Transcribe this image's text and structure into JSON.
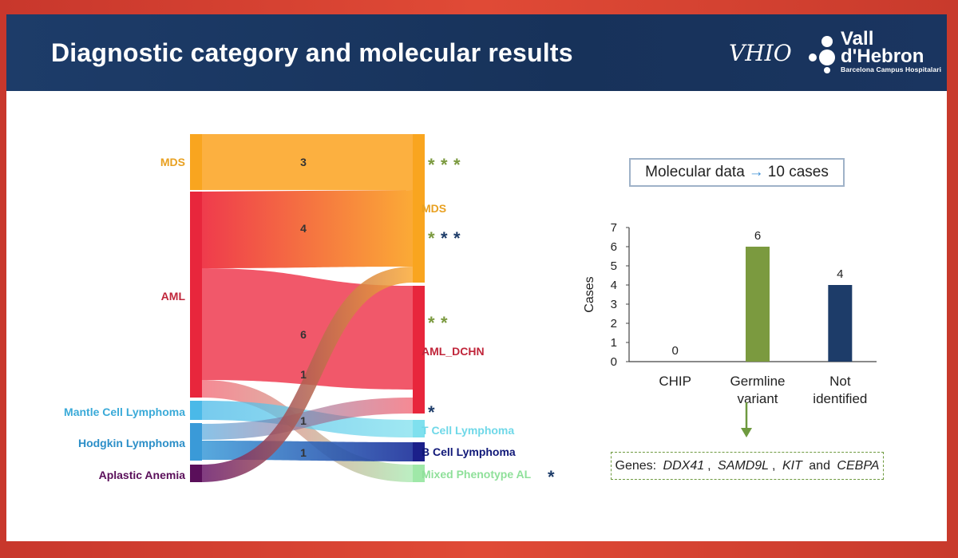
{
  "header": {
    "title": "Diagnostic category and molecular results",
    "logo_vhio": "VHIO",
    "logo_vh_line1": "Vall",
    "logo_vh_line2": "d'Hebron",
    "logo_vh_sub": "Barcelona Campus Hospitalari"
  },
  "sankey": {
    "left_nodes": [
      "MDS",
      "AML",
      "Mantle Cell Lymphoma",
      "Hodgkin Lymphoma",
      "Aplastic Anemia"
    ],
    "right_nodes": [
      "MDS",
      "AML_DCHN",
      "T Cell Lymphoma",
      "B Cell Lymphoma",
      "Mixed Phenotype AL"
    ],
    "flows": [
      {
        "from": "MDS",
        "to": "MDS",
        "value": 3
      },
      {
        "from": "AML",
        "to": "MDS",
        "value": 4
      },
      {
        "from": "AML",
        "to": "AML_DCHN",
        "value": 6
      },
      {
        "from": "AML",
        "to": "Mixed Phenotype AL",
        "value": 1
      },
      {
        "from": "Mantle Cell Lymphoma",
        "to": "T Cell Lymphoma",
        "value": 1
      },
      {
        "from": "Hodgkin Lymphoma",
        "to": "B Cell Lymphoma",
        "value": 1
      },
      {
        "from": "Hodgkin Lymphoma",
        "to": "AML_DCHN",
        "value": 1
      },
      {
        "from": "Aplastic Anemia",
        "to": "MDS",
        "value": 1
      }
    ],
    "flow_labels": [
      "3",
      "4",
      "6",
      "1",
      "1",
      "1"
    ],
    "markers": [
      {
        "stars": [
          "*",
          "*",
          "*"
        ],
        "colors": [
          "#7b9a3f",
          "#7b9a3f",
          "#7b9a3f"
        ]
      },
      {
        "stars": [
          "*",
          "*",
          "*"
        ],
        "colors": [
          "#7b9a3f",
          "#1d3c69",
          "#1d3c69"
        ]
      },
      {
        "stars": [
          "*",
          "*"
        ],
        "colors": [
          "#7b9a3f",
          "#7b9a3f"
        ]
      },
      {
        "stars": [
          "*"
        ],
        "colors": [
          "#1d3c69"
        ]
      },
      {
        "stars": [
          "*"
        ],
        "colors": [
          "#1d3c69"
        ]
      }
    ]
  },
  "molecular_box": {
    "prefix": "Molecular data",
    "arrow": "→",
    "suffix": "10 cases"
  },
  "chart_data": {
    "type": "bar",
    "categories": [
      [
        "CHIP"
      ],
      [
        "Germline",
        "variant"
      ],
      [
        "Not",
        "identified"
      ]
    ],
    "values": [
      0,
      6,
      4
    ],
    "value_labels": [
      "0",
      "6",
      "4"
    ],
    "colors": [
      "#7b9a3f",
      "#7b9a3f",
      "#1d3c69"
    ],
    "ylabel": "Cases",
    "ylim": [
      0,
      7
    ],
    "yticks": [
      "0",
      "1",
      "2",
      "3",
      "4",
      "5",
      "6",
      "7"
    ],
    "grid": false
  },
  "genes_box": {
    "prefix": "Genes: ",
    "genes": [
      "DDX41",
      ", ",
      "SAMD9L",
      ", ",
      "KIT",
      " and ",
      "CEBPA"
    ]
  }
}
